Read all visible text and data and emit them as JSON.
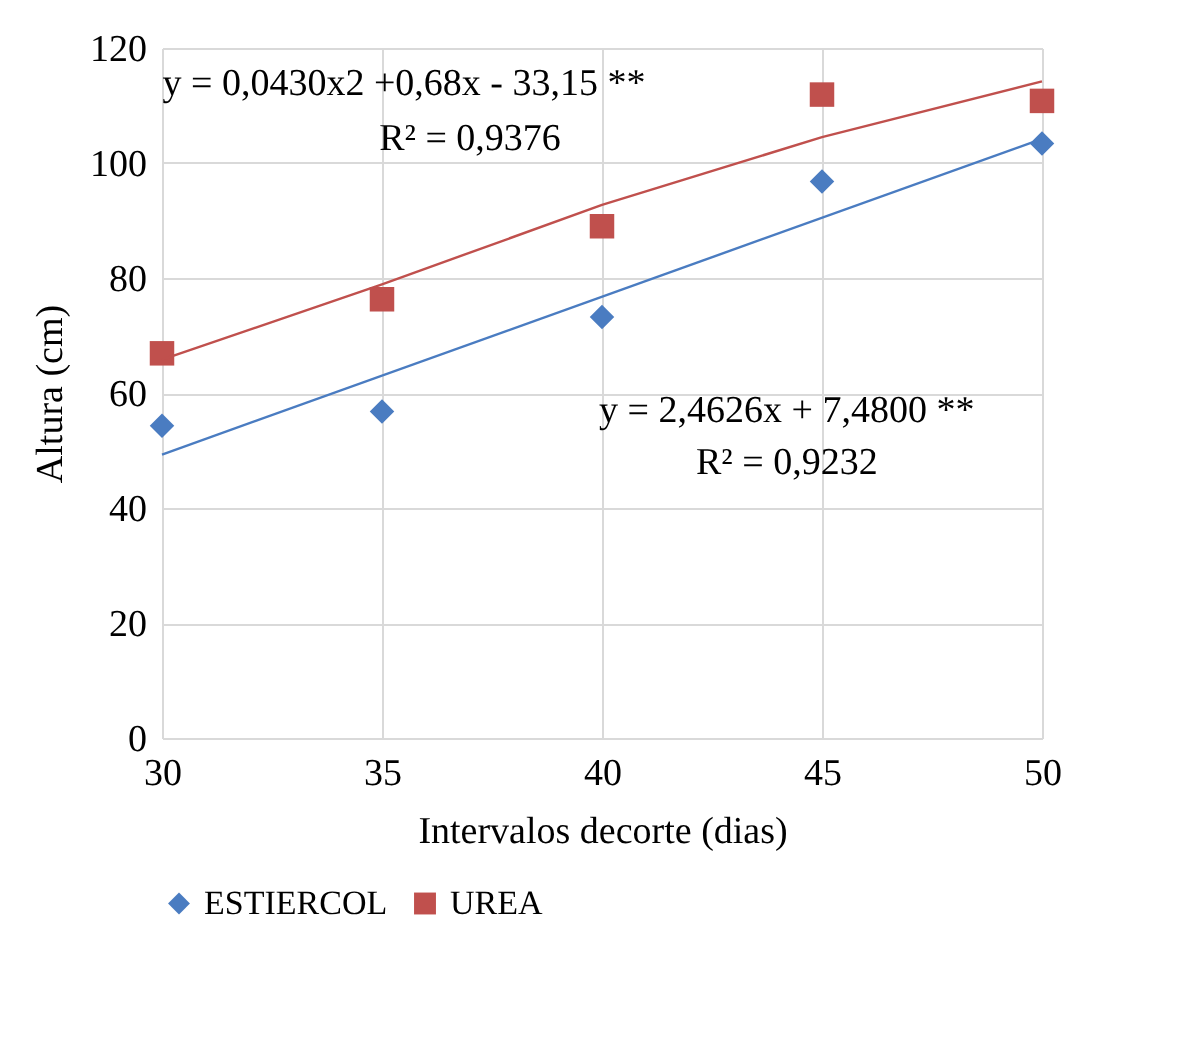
{
  "chart_data": {
    "type": "scatter",
    "xlabel": "Intervalos decorte (dias)",
    "ylabel": "Altura (cm)",
    "x": [
      30,
      35,
      40,
      45,
      50
    ],
    "series": [
      {
        "name": "ESTIERCOL",
        "color": "#4a7cc1",
        "marker": "diamond",
        "values": [
          54.3,
          56.8,
          73.2,
          96.8,
          103.4
        ]
      },
      {
        "name": "UREA",
        "color": "#c0504d",
        "marker": "square",
        "values": [
          66.9,
          76.3,
          89.0,
          111.9,
          110.8
        ]
      },
      {
        "type": "line",
        "color": "#4a7cc1",
        "x": [
          30,
          50
        ],
        "values": [
          49.3,
          104.2
        ]
      },
      {
        "type": "line",
        "color": "#c0504d",
        "x": [
          30,
          35,
          40,
          45,
          50
        ],
        "values": [
          65.8,
          78.9,
          92.7,
          104.5,
          114.2
        ]
      }
    ],
    "xlim": [
      30,
      50
    ],
    "xticks": [
      30,
      35,
      40,
      45,
      50
    ],
    "ylim": [
      0,
      120
    ],
    "yticks": [
      0,
      20,
      40,
      60,
      80,
      100,
      120
    ],
    "grid": true,
    "legend": "bottom",
    "annotations": [
      "y = 0,0430x2 +0,68x - 33,15 **",
      "R² = 0,9376",
      "y = 2,4626x + 7,4800 **",
      "R² = 0,9232"
    ]
  }
}
